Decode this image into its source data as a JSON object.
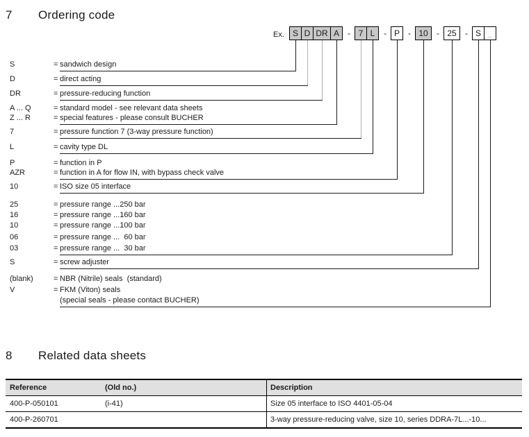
{
  "ordering": {
    "number": "7",
    "title": "Ordering code"
  },
  "related": {
    "number": "8",
    "title": "Related data sheets"
  },
  "example": {
    "label": "Ex.",
    "separator": "-",
    "boxes": [
      {
        "text": "S",
        "filled": true
      },
      {
        "text": "D",
        "filled": true,
        "gray_line": true
      },
      {
        "text": "DR",
        "filled": true,
        "gray_line": true
      },
      {
        "text": "A",
        "filled": true
      },
      {
        "text": "7",
        "filled": true,
        "gray_line": true,
        "sep_before": true
      },
      {
        "text": "L",
        "filled": true
      },
      {
        "text": "P",
        "filled": false,
        "sep_before": true
      },
      {
        "text": "10",
        "filled": true,
        "sep_before": true
      },
      {
        "text": "25",
        "filled": false,
        "sep_before": true
      },
      {
        "text": "S",
        "filled": false,
        "sep_before": true
      },
      {
        "text": "_",
        "filled": false,
        "muted": true
      }
    ]
  },
  "legend": {
    "eq": "=",
    "rows": [
      {
        "code": "S",
        "desc": "sandwich design",
        "connect": 0
      },
      {
        "code": "D",
        "desc": "direct acting",
        "connect": 1
      },
      {
        "code": "DR",
        "desc": "pressure-reducing function",
        "connect": 2
      },
      {
        "code": "A ... Q",
        "desc": "standard model - see relevant data sheets"
      },
      {
        "code": "Z ... R",
        "desc": "special features - please consult BUCHER",
        "connect": 3
      },
      {
        "code": "7",
        "desc": "pressure function 7 (3-way pressure function)",
        "connect": 4
      },
      {
        "code": "L",
        "desc": "cavity type DL",
        "connect": 5
      },
      {
        "code": "P",
        "desc": "function in P"
      },
      {
        "code": "AZR",
        "desc": "function in A for flow IN, with bypass check valve",
        "connect": 6
      },
      {
        "code": "10",
        "desc": "ISO size 05 interface",
        "connect": 7
      },
      {
        "code": "25",
        "desc": "pressure range ...250 bar"
      },
      {
        "code": "16",
        "desc": "pressure range ...160 bar"
      },
      {
        "code": "10",
        "desc": "pressure range ...100 bar"
      },
      {
        "code": "06",
        "desc": "pressure range ...  60 bar"
      },
      {
        "code": "03",
        "desc": "pressure range ...  30 bar",
        "connect": 8
      },
      {
        "code": "S",
        "desc": "screw adjuster",
        "connect": 9
      },
      {
        "code": "(blank)",
        "desc": "NBR (Nitrile) seals  (standard)"
      },
      {
        "code": "V",
        "desc": "FKM (Viton) seals"
      },
      {
        "code": "",
        "desc": "(special seals - please contact BUCHER)",
        "connect": 10
      }
    ]
  },
  "table": {
    "headers": [
      "Reference",
      "(Old no.)",
      "Description"
    ],
    "rows": [
      [
        "400-P-050101",
        "(i-41)",
        "Size 05 interface to ISO 4401-05-04"
      ],
      [
        "400-P-260701",
        "",
        "3-way pressure-reducing valve, size 10, series DDRA-7L...-10..."
      ]
    ]
  },
  "colors": {
    "box_fill": "#c8c8c8",
    "table_header_bg": "#e0e0e0",
    "gray_connector": "#b0b0b0",
    "text": "#1a1a1a"
  }
}
